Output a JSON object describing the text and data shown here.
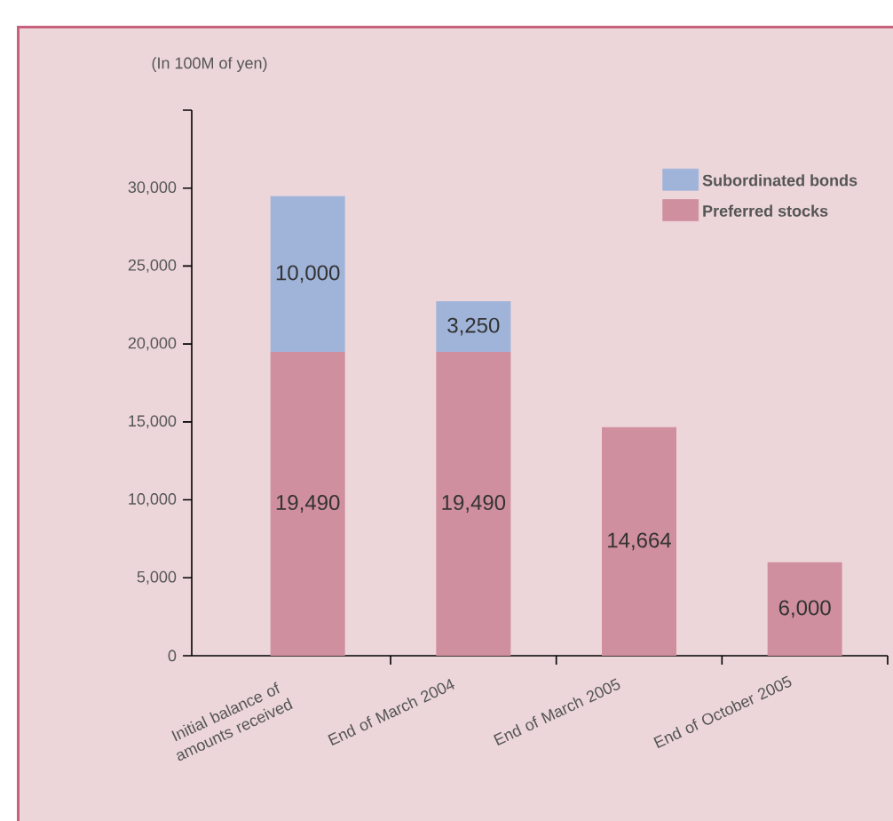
{
  "chart_data": {
    "type": "bar",
    "stacked": true,
    "ylabel": "(In 100M of yen)",
    "categories": [
      "Initial balance of amounts received",
      "End of March 2004",
      "End of March 2005",
      "End of October 2005"
    ],
    "series": [
      {
        "name": "Preferred stocks",
        "color": "#d08f9e",
        "values": [
          19490,
          19490,
          14664,
          6000
        ],
        "value_labels": [
          "19,490",
          "19,490",
          "14,664",
          "6,000"
        ]
      },
      {
        "name": "Subordinated bonds",
        "color": "#a0b4da",
        "values": [
          10000,
          3250,
          null,
          null
        ],
        "value_labels": [
          "10,000",
          "3,250",
          null,
          null
        ]
      }
    ],
    "ylim": [
      0,
      35000
    ],
    "yticks": [
      0,
      {
        "value": 5000,
        "label": "5,000"
      },
      {
        "value": 10000,
        "label": "10,000"
      },
      {
        "value": 15000,
        "label": "15,000"
      },
      {
        "value": 20000,
        "label": "20,000"
      },
      {
        "value": 25000,
        "label": "25,000"
      },
      {
        "value": 30000,
        "label": "30,000"
      },
      {
        "value": 35000,
        "label": null
      }
    ],
    "legend": "top right",
    "grid": false
  }
}
